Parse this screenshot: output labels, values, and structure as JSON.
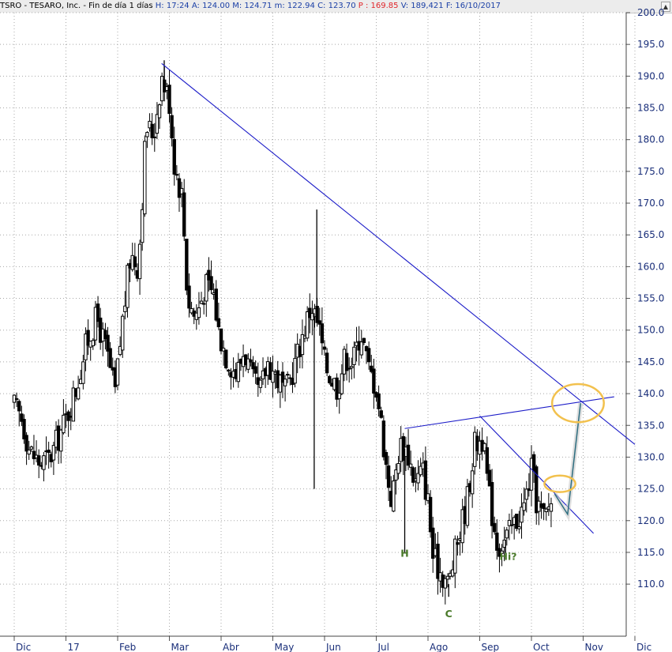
{
  "header": {
    "symbol": "TSRO - TESARO, Inc.",
    "period": "Fin de día 1 días",
    "fields": [
      {
        "label": "H:",
        "value": "17:24",
        "color": "#1a3fa6"
      },
      {
        "label": "A:",
        "value": "124.00",
        "color": "#1a3fa6"
      },
      {
        "label": "M:",
        "value": "124.71",
        "color": "#1a3fa6"
      },
      {
        "label": "m:",
        "value": "122.94",
        "color": "#1a3fa6"
      },
      {
        "label": "C:",
        "value": "123.70",
        "color": "#1a3fa6"
      },
      {
        "label": "P :",
        "value": "169.85",
        "color": "#e0262b"
      },
      {
        "label": "V:",
        "value": "189,421",
        "color": "#1a3fa6"
      },
      {
        "label": "F:",
        "value": "16/10/2017",
        "color": "#1a3fa6"
      }
    ]
  },
  "colors": {
    "candle": "#000000",
    "trendline": "#1c1cc8",
    "projection": "#2e6e80",
    "circle": "#f2c14e",
    "annotation": "#4a7a2a",
    "axis_text": "#1a2f7a"
  },
  "chart_data": {
    "type": "candlestick",
    "y_axis": {
      "side": "right",
      "range": [
        101.8,
        200.0
      ],
      "ticks": [
        110.0,
        115.0,
        120.0,
        125.0,
        130.0,
        135.0,
        140.0,
        145.0,
        150.0,
        155.0,
        160.0,
        165.0,
        170.0,
        175.0,
        180.0,
        185.0,
        190.0,
        195.0,
        200.0
      ],
      "tick_labels": [
        "110.0",
        "115.0",
        "120.0",
        "125.0",
        "130.0",
        "135.0",
        "140.0",
        "145.0",
        "150.0",
        "155.0",
        "160.0",
        "165.0",
        "170.0",
        "175.0",
        "180.0",
        "185.0",
        "190.0",
        "195.0",
        "200.0"
      ],
      "grid": true
    },
    "x_axis": {
      "unit": "months from 1 Dec 2016",
      "range": [
        0,
        12.2
      ],
      "labels": [
        {
          "text": "Dic",
          "x": 0.0
        },
        {
          "text": "17",
          "x": 1.0
        },
        {
          "text": "Feb",
          "x": 2.0
        },
        {
          "text": "Mar",
          "x": 3.0
        },
        {
          "text": "Abr",
          "x": 4.0
        },
        {
          "text": "May",
          "x": 5.0
        },
        {
          "text": "Jun",
          "x": 6.0
        },
        {
          "text": "Jul",
          "x": 7.0
        },
        {
          "text": "Ago",
          "x": 8.0
        },
        {
          "text": "Sep",
          "x": 9.0
        },
        {
          "text": "Oct",
          "x": 10.0
        },
        {
          "text": "Nov",
          "x": 11.0
        },
        {
          "text": "Dic",
          "x": 12.0
        }
      ],
      "grid": true
    },
    "price_path": [
      [
        0.0,
        138
      ],
      [
        0.15,
        136
      ],
      [
        0.3,
        131
      ],
      [
        0.5,
        129
      ],
      [
        0.7,
        130
      ],
      [
        0.85,
        133
      ],
      [
        1.0,
        136
      ],
      [
        1.2,
        141
      ],
      [
        1.4,
        148
      ],
      [
        1.6,
        152
      ],
      [
        1.8,
        146
      ],
      [
        1.95,
        140
      ],
      [
        2.1,
        152
      ],
      [
        2.25,
        162
      ],
      [
        2.4,
        160
      ],
      [
        2.55,
        182
      ],
      [
        2.7,
        181
      ],
      [
        2.85,
        190
      ],
      [
        3.0,
        186
      ],
      [
        3.1,
        176
      ],
      [
        3.25,
        171
      ],
      [
        3.35,
        155
      ],
      [
        3.5,
        152
      ],
      [
        3.7,
        157
      ],
      [
        3.85,
        156
      ],
      [
        3.95,
        150
      ],
      [
        4.1,
        146
      ],
      [
        4.3,
        143
      ],
      [
        4.45,
        147
      ],
      [
        4.6,
        142
      ],
      [
        4.75,
        140
      ],
      [
        4.9,
        145
      ],
      [
        5.05,
        143
      ],
      [
        5.25,
        140
      ],
      [
        5.4,
        144
      ],
      [
        5.6,
        150
      ],
      [
        5.75,
        154
      ],
      [
        5.9,
        150
      ],
      [
        6.0,
        145
      ],
      [
        6.1,
        143
      ],
      [
        6.25,
        141
      ],
      [
        6.4,
        146
      ],
      [
        6.55,
        145
      ],
      [
        6.7,
        150
      ],
      [
        6.85,
        144
      ],
      [
        7.0,
        141
      ],
      [
        7.1,
        135
      ],
      [
        7.2,
        128
      ],
      [
        7.3,
        123
      ],
      [
        7.45,
        132
      ],
      [
        7.6,
        131
      ],
      [
        7.75,
        126
      ],
      [
        7.9,
        128
      ],
      [
        8.0,
        123
      ],
      [
        8.1,
        114
      ],
      [
        8.25,
        112
      ],
      [
        8.4,
        110
      ],
      [
        8.55,
        116
      ],
      [
        8.75,
        123
      ],
      [
        8.9,
        132
      ],
      [
        9.05,
        133
      ],
      [
        9.2,
        123
      ],
      [
        9.35,
        116
      ],
      [
        9.5,
        117
      ],
      [
        9.7,
        120
      ],
      [
        9.85,
        122
      ],
      [
        10.0,
        128
      ],
      [
        10.1,
        123
      ],
      [
        10.25,
        120
      ],
      [
        10.4,
        124
      ]
    ],
    "extremes": [
      {
        "x": 2.9,
        "high": 192.5
      },
      {
        "x": 5.85,
        "high": 169.0
      },
      {
        "x": 5.8,
        "low": 125.0
      },
      {
        "x": 7.55,
        "low": 115.0
      },
      {
        "x": 8.4,
        "low": 108.0
      },
      {
        "x": 9.5,
        "low": 114.5
      }
    ],
    "trendlines": [
      {
        "name": "downtrend-main",
        "from": [
          2.85,
          192.0
        ],
        "to": [
          12.0,
          132.0
        ]
      },
      {
        "name": "neckline",
        "from": [
          7.55,
          134.5
        ],
        "to": [
          11.6,
          139.5
        ]
      },
      {
        "name": "downtrend-short",
        "from": [
          9.0,
          136.5
        ],
        "to": [
          11.2,
          118.0
        ]
      }
    ],
    "projection": [
      [
        10.45,
        124.2
      ],
      [
        10.7,
        121.0
      ],
      [
        10.95,
        138.5
      ]
    ],
    "circles": [
      {
        "center": [
          10.9,
          138.5
        ],
        "rx_months": 0.5,
        "ry_price": 3.0
      },
      {
        "center": [
          10.55,
          125.8
        ],
        "rx_months": 0.3,
        "ry_price": 1.3
      }
    ],
    "annotations": [
      {
        "text": "H",
        "x": 7.55,
        "y": 114.3
      },
      {
        "text": "C",
        "x": 8.4,
        "y": 104.8
      },
      {
        "text": "Hi?",
        "x": 9.55,
        "y": 113.8
      }
    ]
  }
}
